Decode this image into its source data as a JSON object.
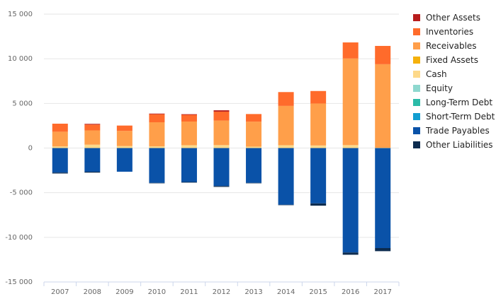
{
  "chart_data": {
    "type": "bar",
    "stacked": true,
    "categories": [
      "2007",
      "2008",
      "2009",
      "2010",
      "2011",
      "2012",
      "2013",
      "2014",
      "2015",
      "2016",
      "2017"
    ],
    "ylim": [
      -15000,
      15000
    ],
    "yticks": [
      -15000,
      -10000,
      -5000,
      0,
      5000,
      10000,
      15000
    ],
    "ytick_labels": [
      "-15 000",
      "-10 000",
      "-5 000",
      "0",
      "5 000",
      "10 000",
      "15 000"
    ],
    "grid": true,
    "legend_position": "right",
    "series": [
      {
        "name": "Cash",
        "color": "#fdd98a",
        "values": [
          180,
          380,
          220,
          190,
          320,
          330,
          160,
          320,
          290,
          330,
          40
        ]
      },
      {
        "name": "Receivables",
        "color": "#ff9f4a",
        "values": [
          1650,
          1600,
          1700,
          2700,
          2650,
          2750,
          2800,
          4400,
          4700,
          9700,
          9350
        ]
      },
      {
        "name": "Inventories",
        "color": "#ff6b2b",
        "values": [
          900,
          650,
          600,
          900,
          750,
          1000,
          850,
          1550,
          1400,
          1800,
          2050
        ]
      },
      {
        "name": "Other Assets",
        "color": "#b71d1d",
        "values": [
          0,
          80,
          0,
          70,
          70,
          150,
          0,
          0,
          0,
          0,
          0
        ]
      },
      {
        "name": "Trade Payables",
        "color": "#0a52a8",
        "values": [
          -2750,
          -2650,
          -2650,
          -3900,
          -3800,
          -4250,
          -3900,
          -6350,
          -6200,
          -11700,
          -11200
        ]
      },
      {
        "name": "Other Liabilities",
        "color": "#0d2c4f",
        "values": [
          -100,
          -100,
          0,
          -50,
          -70,
          -100,
          -50,
          -50,
          -250,
          -250,
          -350
        ]
      }
    ],
    "legend": [
      {
        "name": "Other Assets",
        "color": "#b71d1d"
      },
      {
        "name": "Inventories",
        "color": "#ff6b2b"
      },
      {
        "name": "Receivables",
        "color": "#ff9f4a"
      },
      {
        "name": "Fixed Assets",
        "color": "#f5b10c"
      },
      {
        "name": "Cash",
        "color": "#fdd98a"
      },
      {
        "name": "Equity",
        "color": "#8ed8cf"
      },
      {
        "name": "Long-Term Debt",
        "color": "#2bbba8"
      },
      {
        "name": "Short-Term Debt",
        "color": "#129ed1"
      },
      {
        "name": "Trade Payables",
        "color": "#0a52a8"
      },
      {
        "name": "Other Liabilities",
        "color": "#0d2c4f"
      }
    ]
  }
}
